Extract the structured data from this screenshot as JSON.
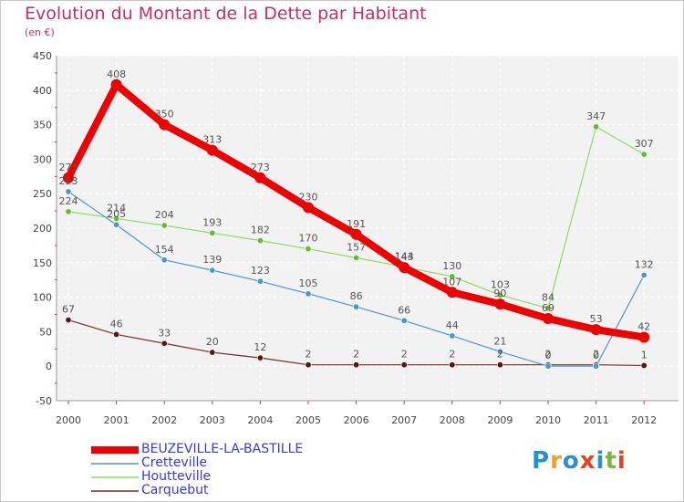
{
  "title": "Evolution du Montant de la Dette par Habitant",
  "subtitle": "(en €)",
  "logo": {
    "text": "Proxiti",
    "letters": [
      "P",
      "r",
      "o",
      "x",
      "i",
      "t",
      "i"
    ],
    "letter_colors": [
      "#2a8fd6",
      "#f0a020",
      "#2a8fd6",
      "#e8431d",
      "#2a8fd6",
      "#7ab640",
      "#e8431d"
    ]
  },
  "chart_data": {
    "type": "line",
    "categories": [
      "2000",
      "2001",
      "2002",
      "2003",
      "2004",
      "2005",
      "2006",
      "2007",
      "2008",
      "2009",
      "2010",
      "2011",
      "2012"
    ],
    "ylim": [
      -50,
      450
    ],
    "yticks": [
      "-50",
      "0",
      "50",
      "100",
      "150",
      "200",
      "250",
      "300",
      "350",
      "400",
      "450"
    ],
    "ytick_values": [
      -50,
      0,
      50,
      100,
      150,
      200,
      250,
      300,
      350,
      400,
      450
    ],
    "grid": true,
    "legend_position": "bottom-left",
    "series": [
      {
        "name": "BEUZEVILLE-LA-BASTILLE",
        "color": "#ee0000",
        "marker_color": "#ee0000",
        "values": [
          273,
          408,
          350,
          313,
          273,
          230,
          191,
          143,
          107,
          90,
          69,
          53,
          42
        ],
        "labels": [
          "273",
          "408",
          "350",
          "313",
          "273",
          "230",
          "191",
          "143",
          "107",
          "90",
          "69",
          "53",
          "42"
        ]
      },
      {
        "name": "Cretteville",
        "color": "#4f94cd",
        "marker_color": "#4f94cd",
        "values": [
          253,
          205,
          154,
          139,
          123,
          105,
          86,
          66,
          44,
          21,
          0,
          0,
          132
        ],
        "labels": [
          "253",
          "205",
          "154",
          "139",
          "123",
          "105",
          "86",
          "66",
          "44",
          "21",
          "0",
          "0",
          "132"
        ]
      },
      {
        "name": "Houtteville",
        "color": "#88dd66",
        "marker_color": "#66bb33",
        "values": [
          224,
          214,
          204,
          193,
          182,
          170,
          157,
          144,
          130,
          103,
          84,
          347,
          307
        ],
        "labels": [
          "224",
          "214",
          "204",
          "193",
          "182",
          "170",
          "157",
          "144",
          "130",
          "103",
          "84",
          "347",
          "307"
        ]
      },
      {
        "name": "Carquebut",
        "color": "#7a2a2a",
        "marker_color": "#5a1515",
        "values": [
          67,
          46,
          33,
          20,
          12,
          2,
          2,
          2,
          2,
          2,
          2,
          2,
          1
        ],
        "labels": [
          "67",
          "46",
          "33",
          "20",
          "12",
          "2",
          "2",
          "2",
          "2",
          "2",
          "2",
          "2",
          "1"
        ]
      }
    ]
  }
}
